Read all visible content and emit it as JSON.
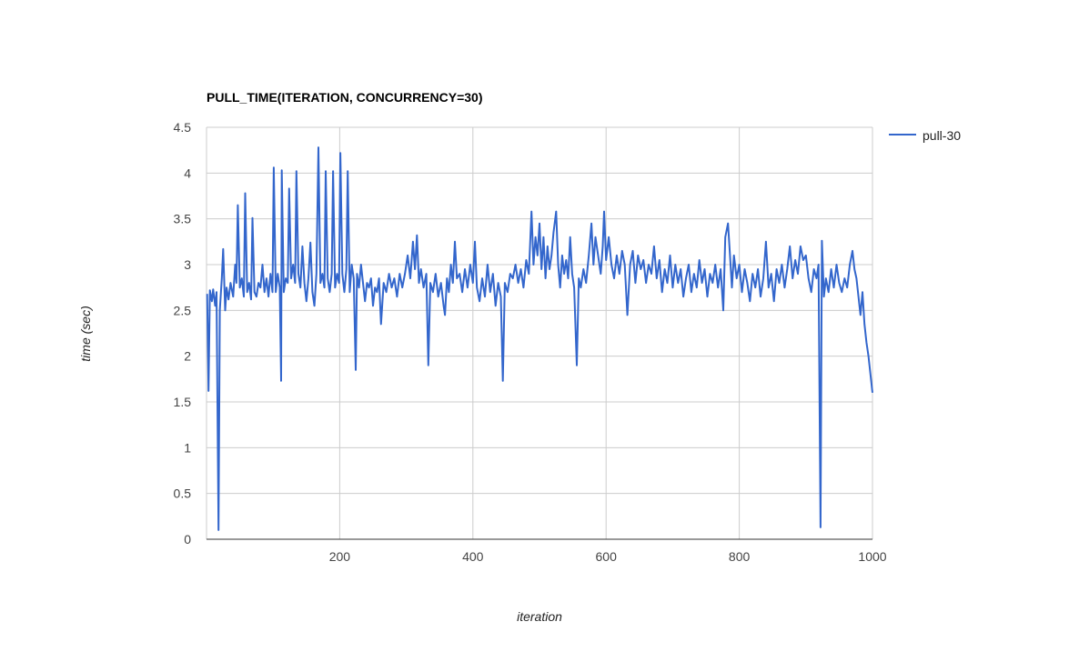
{
  "chart_data": {
    "type": "line",
    "title": "PULL_TIME(ITERATION, CONCURRENCY=30)",
    "xlabel": "iteration",
    "ylabel": "time (sec)",
    "xlim": [
      0,
      1000
    ],
    "ylim": [
      0,
      4.5
    ],
    "x_ticks": [
      "200",
      "400",
      "600",
      "800",
      "1000"
    ],
    "x_tick_values": [
      200,
      400,
      600,
      800,
      1000
    ],
    "y_ticks": [
      "0",
      "0.5",
      "1",
      "1.5",
      "2",
      "2.5",
      "3",
      "3.5",
      "4",
      "4.5"
    ],
    "y_tick_values": [
      0,
      0.5,
      1,
      1.5,
      2,
      2.5,
      3,
      3.5,
      4,
      4.5
    ],
    "grid": true,
    "legend": "right",
    "series": [
      {
        "name": "pull-30",
        "color": "#3366cc",
        "points": [
          [
            1,
            2.68
          ],
          [
            3,
            1.62
          ],
          [
            5,
            2.72
          ],
          [
            8,
            2.6
          ],
          [
            10,
            2.73
          ],
          [
            13,
            2.55
          ],
          [
            15,
            2.7
          ],
          [
            18,
            0.1
          ],
          [
            20,
            2.5
          ],
          [
            23,
            2.85
          ],
          [
            25,
            3.17
          ],
          [
            28,
            2.5
          ],
          [
            30,
            2.75
          ],
          [
            33,
            2.62
          ],
          [
            36,
            2.8
          ],
          [
            40,
            2.65
          ],
          [
            43,
            3.0
          ],
          [
            45,
            2.8
          ],
          [
            47,
            3.65
          ],
          [
            50,
            2.75
          ],
          [
            53,
            2.85
          ],
          [
            56,
            2.65
          ],
          [
            58,
            3.78
          ],
          [
            61,
            2.7
          ],
          [
            64,
            2.8
          ],
          [
            67,
            2.62
          ],
          [
            69,
            3.51
          ],
          [
            72,
            2.7
          ],
          [
            75,
            2.65
          ],
          [
            78,
            2.8
          ],
          [
            81,
            2.75
          ],
          [
            84,
            3.0
          ],
          [
            87,
            2.7
          ],
          [
            90,
            2.85
          ],
          [
            93,
            2.65
          ],
          [
            96,
            2.9
          ],
          [
            99,
            2.7
          ],
          [
            101,
            4.06
          ],
          [
            104,
            2.7
          ],
          [
            107,
            2.9
          ],
          [
            110,
            2.75
          ],
          [
            112,
            1.73
          ],
          [
            113,
            4.03
          ],
          [
            116,
            2.7
          ],
          [
            119,
            2.85
          ],
          [
            122,
            2.8
          ],
          [
            124,
            3.83
          ],
          [
            127,
            2.85
          ],
          [
            130,
            3.0
          ],
          [
            133,
            2.8
          ],
          [
            135,
            4.02
          ],
          [
            138,
            2.9
          ],
          [
            141,
            2.75
          ],
          [
            144,
            3.2
          ],
          [
            147,
            2.8
          ],
          [
            150,
            2.6
          ],
          [
            153,
            2.85
          ],
          [
            156,
            3.24
          ],
          [
            159,
            2.7
          ],
          [
            162,
            2.55
          ],
          [
            165,
            2.9
          ],
          [
            168,
            4.28
          ],
          [
            171,
            2.8
          ],
          [
            174,
            2.9
          ],
          [
            177,
            2.75
          ],
          [
            179,
            4.02
          ],
          [
            182,
            2.85
          ],
          [
            185,
            2.7
          ],
          [
            188,
            2.9
          ],
          [
            190,
            4.02
          ],
          [
            193,
            2.75
          ],
          [
            196,
            2.9
          ],
          [
            199,
            2.8
          ],
          [
            201,
            4.22
          ],
          [
            204,
            2.9
          ],
          [
            207,
            2.7
          ],
          [
            210,
            2.95
          ],
          [
            212,
            4.02
          ],
          [
            215,
            2.7
          ],
          [
            218,
            3.0
          ],
          [
            221,
            2.85
          ],
          [
            224,
            1.85
          ],
          [
            226,
            2.9
          ],
          [
            229,
            2.75
          ],
          [
            232,
            3.0
          ],
          [
            235,
            2.8
          ],
          [
            238,
            2.6
          ],
          [
            241,
            2.8
          ],
          [
            244,
            2.75
          ],
          [
            247,
            2.85
          ],
          [
            250,
            2.55
          ],
          [
            253,
            2.75
          ],
          [
            256,
            2.7
          ],
          [
            259,
            2.85
          ],
          [
            262,
            2.35
          ],
          [
            266,
            2.8
          ],
          [
            270,
            2.7
          ],
          [
            274,
            2.9
          ],
          [
            278,
            2.75
          ],
          [
            282,
            2.85
          ],
          [
            286,
            2.65
          ],
          [
            290,
            2.9
          ],
          [
            294,
            2.75
          ],
          [
            298,
            2.9
          ],
          [
            302,
            3.1
          ],
          [
            306,
            2.85
          ],
          [
            310,
            3.25
          ],
          [
            313,
            2.95
          ],
          [
            316,
            3.32
          ],
          [
            319,
            2.8
          ],
          [
            322,
            2.95
          ],
          [
            326,
            2.75
          ],
          [
            330,
            2.9
          ],
          [
            333,
            1.9
          ],
          [
            336,
            2.8
          ],
          [
            340,
            2.7
          ],
          [
            344,
            2.9
          ],
          [
            348,
            2.65
          ],
          [
            352,
            2.8
          ],
          [
            356,
            2.55
          ],
          [
            358,
            2.45
          ],
          [
            361,
            2.85
          ],
          [
            364,
            2.7
          ],
          [
            367,
            3.0
          ],
          [
            370,
            2.8
          ],
          [
            373,
            3.25
          ],
          [
            376,
            2.85
          ],
          [
            380,
            2.9
          ],
          [
            384,
            2.7
          ],
          [
            388,
            2.95
          ],
          [
            392,
            2.75
          ],
          [
            396,
            3.0
          ],
          [
            400,
            2.8
          ],
          [
            403,
            3.25
          ],
          [
            406,
            2.75
          ],
          [
            410,
            2.6
          ],
          [
            414,
            2.85
          ],
          [
            418,
            2.65
          ],
          [
            422,
            3.0
          ],
          [
            426,
            2.7
          ],
          [
            430,
            2.9
          ],
          [
            434,
            2.55
          ],
          [
            438,
            2.8
          ],
          [
            442,
            2.65
          ],
          [
            445,
            1.73
          ],
          [
            448,
            2.8
          ],
          [
            452,
            2.7
          ],
          [
            456,
            2.9
          ],
          [
            460,
            2.85
          ],
          [
            464,
            3.0
          ],
          [
            468,
            2.8
          ],
          [
            472,
            2.95
          ],
          [
            476,
            2.75
          ],
          [
            480,
            3.05
          ],
          [
            484,
            2.9
          ],
          [
            488,
            3.58
          ],
          [
            491,
            3.0
          ],
          [
            494,
            3.3
          ],
          [
            497,
            3.1
          ],
          [
            500,
            3.45
          ],
          [
            503,
            2.95
          ],
          [
            506,
            3.3
          ],
          [
            509,
            2.85
          ],
          [
            512,
            3.2
          ],
          [
            515,
            2.95
          ],
          [
            518,
            3.1
          ],
          [
            521,
            3.35
          ],
          [
            525,
            3.58
          ],
          [
            528,
            3.0
          ],
          [
            531,
            2.75
          ],
          [
            534,
            3.1
          ],
          [
            537,
            2.9
          ],
          [
            540,
            3.05
          ],
          [
            543,
            2.85
          ],
          [
            546,
            3.3
          ],
          [
            549,
            2.9
          ],
          [
            552,
            2.75
          ],
          [
            556,
            1.9
          ],
          [
            559,
            2.85
          ],
          [
            562,
            2.75
          ],
          [
            566,
            2.95
          ],
          [
            570,
            2.8
          ],
          [
            574,
            3.1
          ],
          [
            578,
            3.45
          ],
          [
            581,
            3.0
          ],
          [
            584,
            3.3
          ],
          [
            588,
            3.1
          ],
          [
            592,
            2.9
          ],
          [
            595,
            3.2
          ],
          [
            597,
            3.58
          ],
          [
            600,
            3.05
          ],
          [
            604,
            3.3
          ],
          [
            608,
            3.0
          ],
          [
            612,
            2.85
          ],
          [
            616,
            3.1
          ],
          [
            620,
            2.9
          ],
          [
            624,
            3.15
          ],
          [
            628,
            3.0
          ],
          [
            632,
            2.45
          ],
          [
            636,
            3.0
          ],
          [
            640,
            3.15
          ],
          [
            644,
            2.8
          ],
          [
            648,
            3.1
          ],
          [
            652,
            2.95
          ],
          [
            656,
            3.05
          ],
          [
            660,
            2.8
          ],
          [
            664,
            3.0
          ],
          [
            668,
            2.9
          ],
          [
            672,
            3.2
          ],
          [
            676,
            2.85
          ],
          [
            680,
            3.05
          ],
          [
            684,
            2.7
          ],
          [
            688,
            2.95
          ],
          [
            692,
            2.8
          ],
          [
            696,
            3.1
          ],
          [
            700,
            2.75
          ],
          [
            704,
            3.0
          ],
          [
            708,
            2.8
          ],
          [
            712,
            2.95
          ],
          [
            716,
            2.65
          ],
          [
            720,
            2.85
          ],
          [
            724,
            3.0
          ],
          [
            728,
            2.7
          ],
          [
            732,
            2.9
          ],
          [
            736,
            2.75
          ],
          [
            740,
            3.05
          ],
          [
            744,
            2.8
          ],
          [
            748,
            2.95
          ],
          [
            752,
            2.65
          ],
          [
            756,
            2.9
          ],
          [
            760,
            2.8
          ],
          [
            764,
            3.0
          ],
          [
            768,
            2.75
          ],
          [
            772,
            2.95
          ],
          [
            776,
            2.5
          ],
          [
            779,
            3.3
          ],
          [
            783,
            3.45
          ],
          [
            786,
            3.1
          ],
          [
            789,
            2.75
          ],
          [
            792,
            3.1
          ],
          [
            796,
            2.85
          ],
          [
            800,
            3.0
          ],
          [
            804,
            2.7
          ],
          [
            808,
            2.95
          ],
          [
            812,
            2.8
          ],
          [
            816,
            2.6
          ],
          [
            820,
            2.9
          ],
          [
            824,
            2.75
          ],
          [
            828,
            2.95
          ],
          [
            832,
            2.65
          ],
          [
            836,
            2.85
          ],
          [
            840,
            3.25
          ],
          [
            844,
            2.75
          ],
          [
            848,
            2.9
          ],
          [
            852,
            2.6
          ],
          [
            856,
            2.95
          ],
          [
            860,
            2.8
          ],
          [
            864,
            3.0
          ],
          [
            868,
            2.75
          ],
          [
            872,
            2.95
          ],
          [
            876,
            3.2
          ],
          [
            880,
            2.85
          ],
          [
            884,
            3.05
          ],
          [
            888,
            2.9
          ],
          [
            892,
            3.2
          ],
          [
            896,
            3.05
          ],
          [
            900,
            3.1
          ],
          [
            904,
            2.85
          ],
          [
            908,
            2.7
          ],
          [
            912,
            2.95
          ],
          [
            916,
            2.85
          ],
          [
            919,
            3.0
          ],
          [
            922,
            0.13
          ],
          [
            924,
            3.26
          ],
          [
            927,
            2.65
          ],
          [
            930,
            2.85
          ],
          [
            934,
            2.7
          ],
          [
            938,
            2.95
          ],
          [
            942,
            2.75
          ],
          [
            946,
            3.0
          ],
          [
            950,
            2.8
          ],
          [
            954,
            2.7
          ],
          [
            958,
            2.85
          ],
          [
            962,
            2.75
          ],
          [
            966,
            3.0
          ],
          [
            970,
            3.15
          ],
          [
            973,
            2.95
          ],
          [
            976,
            2.85
          ],
          [
            979,
            2.65
          ],
          [
            982,
            2.45
          ],
          [
            985,
            2.7
          ],
          [
            988,
            2.35
          ],
          [
            991,
            2.15
          ],
          [
            994,
            2.0
          ],
          [
            997,
            1.8
          ],
          [
            1000,
            1.6
          ]
        ]
      }
    ]
  }
}
